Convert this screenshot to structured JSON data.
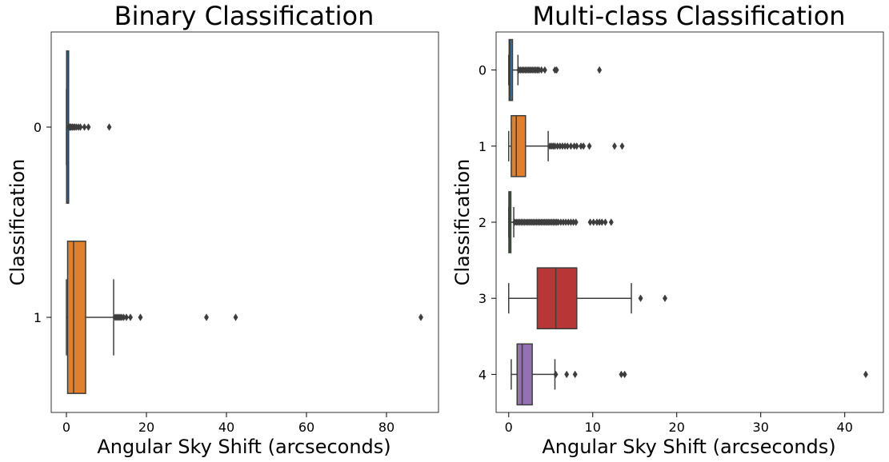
{
  "chart_data": [
    {
      "type": "box",
      "orientation": "horizontal",
      "title": "Binary Classification",
      "xlabel": "Angular Sky Shift (arcseconds)",
      "ylabel": "Classification",
      "xlim": [
        -3.8,
        93
      ],
      "xticks": [
        0,
        20,
        40,
        60,
        80
      ],
      "categories": [
        "0",
        "1"
      ],
      "boxes": [
        {
          "category": "0",
          "color": "#1f77b4",
          "min": 0.0,
          "q1": 0.05,
          "median": 0.12,
          "q3": 0.25,
          "max": 0.5,
          "outliers": [
            0.6,
            0.8,
            1.0,
            1.2,
            1.5,
            1.8,
            2.1,
            2.5,
            3.0,
            3.5,
            4.5,
            5.5,
            10.7
          ]
        },
        {
          "category": "1",
          "color": "#ff7f0e",
          "min": 0.0,
          "q1": 0.3,
          "median": 1.8,
          "q3": 4.8,
          "max": 11.8,
          "outliers": [
            12.2,
            12.6,
            13.0,
            13.4,
            13.8,
            14.3,
            15.0,
            16.0,
            18.5,
            35.0,
            42.3,
            88.6
          ]
        }
      ],
      "grid": false
    },
    {
      "type": "box",
      "orientation": "horizontal",
      "title": "Multi-class Classification",
      "xlabel": "Angular Sky Shift (arcseconds)",
      "ylabel": "Classification",
      "xlim": [
        -1.5,
        44.6
      ],
      "xticks": [
        0,
        10,
        20,
        30,
        40
      ],
      "categories": [
        "0",
        "1",
        "2",
        "3",
        "4"
      ],
      "boxes": [
        {
          "category": "0",
          "color": "#1f77b4",
          "min": 0.0,
          "q1": 0.05,
          "median": 0.15,
          "q3": 0.45,
          "max": 1.1,
          "outliers": [
            1.2,
            1.4,
            1.6,
            1.8,
            2.0,
            2.2,
            2.4,
            2.6,
            2.8,
            3.0,
            3.2,
            3.4,
            3.6,
            3.9,
            4.3,
            5.5,
            5.7,
            10.8
          ]
        },
        {
          "category": "1",
          "color": "#ff7f0e",
          "min": 0.0,
          "q1": 0.3,
          "median": 0.9,
          "q3": 2.0,
          "max": 4.7,
          "outliers": [
            4.9,
            5.1,
            5.3,
            5.5,
            5.8,
            6.1,
            6.4,
            6.7,
            7.0,
            7.4,
            7.8,
            8.1,
            8.6,
            8.9,
            9.6,
            12.6,
            13.5
          ]
        },
        {
          "category": "2",
          "color": "#2ca02c",
          "min": 0.0,
          "q1": 0.02,
          "median": 0.08,
          "q3": 0.25,
          "max": 0.6,
          "outliers": [
            0.7,
            0.9,
            1.1,
            1.3,
            1.5,
            1.7,
            1.9,
            2.1,
            2.3,
            2.5,
            2.7,
            2.9,
            3.1,
            3.3,
            3.5,
            3.7,
            3.9,
            4.1,
            4.3,
            4.5,
            4.7,
            4.9,
            5.1,
            5.3,
            5.5,
            5.7,
            5.9,
            6.2,
            6.5,
            6.8,
            7.1,
            7.4,
            7.7,
            8.0,
            9.7,
            10.1,
            10.5,
            10.8,
            11.1,
            11.5,
            12.2
          ]
        },
        {
          "category": "3",
          "color": "#d62728",
          "min": 0.0,
          "q1": 3.4,
          "median": 5.6,
          "q3": 8.1,
          "max": 14.6,
          "outliers": [
            15.7,
            18.6
          ]
        },
        {
          "category": "4",
          "color": "#9467bd",
          "min": 0.3,
          "q1": 1.0,
          "median": 1.6,
          "q3": 2.8,
          "max": 5.5,
          "outliers": [
            5.6,
            6.9,
            7.9,
            13.4,
            13.8,
            42.5
          ]
        }
      ],
      "grid": false
    }
  ]
}
